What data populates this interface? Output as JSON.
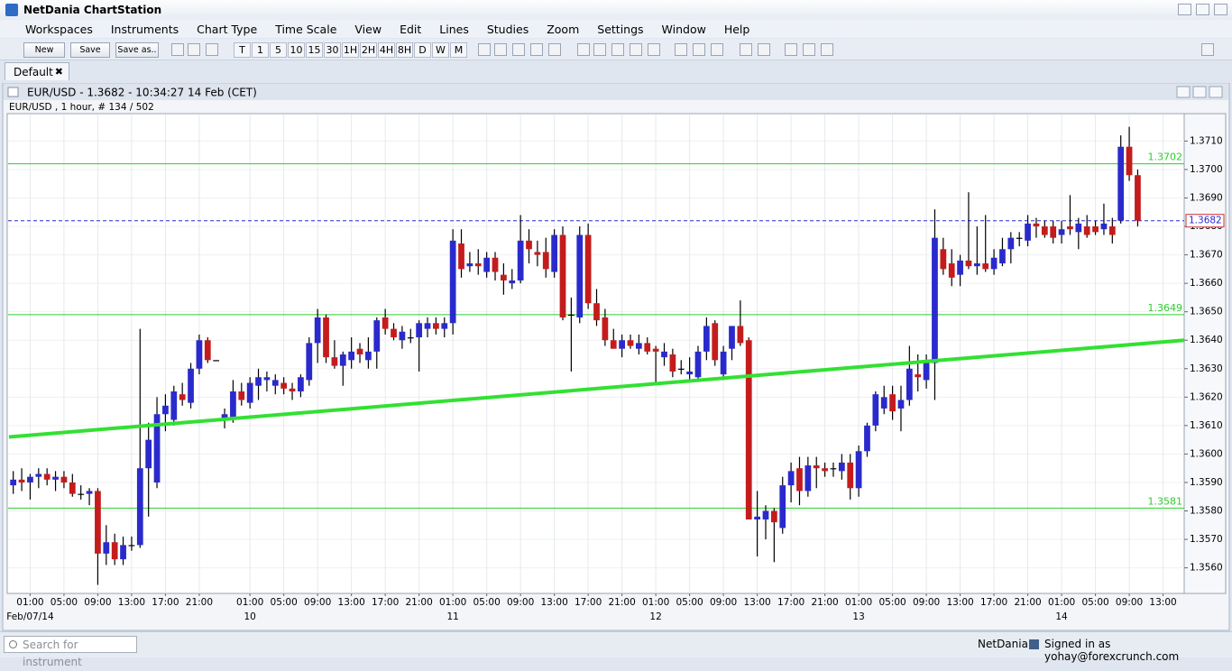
{
  "app": {
    "title": "NetDania ChartStation",
    "menu": [
      "Workspaces",
      "Instruments",
      "Chart Type",
      "Time Scale",
      "View",
      "Edit",
      "Lines",
      "Studies",
      "Zoom",
      "Settings",
      "Window",
      "Help"
    ],
    "buttons": [
      "New",
      "Save",
      "Save as.."
    ],
    "timeframes": [
      "T",
      "1",
      "5",
      "10",
      "15",
      "30",
      "1H",
      "2H",
      "4H",
      "8H",
      "D",
      "W",
      "M"
    ],
    "tab": "Default",
    "window_title": "EUR/USD - 1.3682 - 10:34:27  14 Feb (CET)",
    "chart_info": "EUR/USD , 1 hour, # 134 / 502",
    "search_placeholder": "Search for instrument",
    "status_brand": "NetDania",
    "status_user": "Signed in as yohay@forexcrunch.com"
  },
  "chart_data": {
    "type": "candlestick",
    "up_color": "#2a2acc",
    "down_color": "#c41c1c",
    "level_color": "#2ecc2e",
    "trend_color": "#33e033",
    "last_color": "#2a2acc",
    "grid": true,
    "xlim": [
      -0.5,
      138.5
    ],
    "ylim": [
      1.3551,
      1.3719
    ],
    "yticks": [
      {
        "value": 1.356,
        "label": "1.3560"
      },
      {
        "value": 1.357,
        "label": "1.3570"
      },
      {
        "value": 1.358,
        "label": "1.3580"
      },
      {
        "value": 1.359,
        "label": "1.3590"
      },
      {
        "value": 1.36,
        "label": "1.3600"
      },
      {
        "value": 1.361,
        "label": "1.3610"
      },
      {
        "value": 1.362,
        "label": "1.3620"
      },
      {
        "value": 1.363,
        "label": "1.3630"
      },
      {
        "value": 1.364,
        "label": "1.3640"
      },
      {
        "value": 1.365,
        "label": "1.3650"
      },
      {
        "value": 1.366,
        "label": "1.3660"
      },
      {
        "value": 1.367,
        "label": "1.3670"
      },
      {
        "value": 1.368,
        "label": "1.3680"
      },
      {
        "value": 1.369,
        "label": "1.3690"
      },
      {
        "value": 1.37,
        "label": "1.3700"
      },
      {
        "value": 1.371,
        "label": "1.3710"
      }
    ],
    "xticks": [
      {
        "value": 2,
        "label": "01:00"
      },
      {
        "value": 6,
        "label": "05:00"
      },
      {
        "value": 10,
        "label": "09:00"
      },
      {
        "value": 14,
        "label": "13:00"
      },
      {
        "value": 18,
        "label": "17:00"
      },
      {
        "value": 22,
        "label": "21:00"
      },
      {
        "value": 28,
        "label": "01:00"
      },
      {
        "value": 32,
        "label": "05:00"
      },
      {
        "value": 36,
        "label": "09:00"
      },
      {
        "value": 40,
        "label": "13:00"
      },
      {
        "value": 44,
        "label": "17:00"
      },
      {
        "value": 48,
        "label": "21:00"
      },
      {
        "value": 52,
        "label": "01:00"
      },
      {
        "value": 56,
        "label": "05:00"
      },
      {
        "value": 60,
        "label": "09:00"
      },
      {
        "value": 64,
        "label": "13:00"
      },
      {
        "value": 68,
        "label": "17:00"
      },
      {
        "value": 72,
        "label": "21:00"
      },
      {
        "value": 76,
        "label": "01:00"
      },
      {
        "value": 80,
        "label": "05:00"
      },
      {
        "value": 84,
        "label": "09:00"
      },
      {
        "value": 88,
        "label": "13:00"
      },
      {
        "value": 92,
        "label": "17:00"
      },
      {
        "value": 96,
        "label": "21:00"
      },
      {
        "value": 100,
        "label": "01:00"
      },
      {
        "value": 104,
        "label": "05:00"
      },
      {
        "value": 108,
        "label": "09:00"
      },
      {
        "value": 112,
        "label": "13:00"
      },
      {
        "value": 116,
        "label": "17:00"
      },
      {
        "value": 120,
        "label": "21:00"
      },
      {
        "value": 124,
        "label": "01:00"
      },
      {
        "value": 128,
        "label": "05:00"
      },
      {
        "value": 132,
        "label": "09:00"
      },
      {
        "value": 136,
        "label": "13:00"
      }
    ],
    "xdates": [
      {
        "value": 2,
        "label": "Feb/07/14"
      },
      {
        "value": 28,
        "label": "10"
      },
      {
        "value": 52,
        "label": "11"
      },
      {
        "value": 76,
        "label": "12"
      },
      {
        "value": 100,
        "label": "13"
      },
      {
        "value": 124,
        "label": "14"
      }
    ],
    "open": [
      1.3589,
      1.3591,
      1.359,
      1.3592,
      1.3593,
      1.3591,
      1.3592,
      1.359,
      1.3586,
      1.3586,
      1.3587,
      1.3565,
      1.3569,
      1.3563,
      1.3568,
      1.3568,
      1.3595,
      1.359,
      1.3614,
      1.3612,
      1.3621,
      1.3618,
      1.363,
      1.364,
      1.3633,
      1.3612,
      1.3613,
      1.3622,
      1.3618,
      1.3624,
      1.3626,
      1.3624,
      1.3625,
      1.3623,
      1.3622,
      1.3626,
      1.3639,
      1.3648,
      1.3634,
      1.3631,
      1.3633,
      1.3637,
      1.3633,
      1.3636,
      1.3648,
      1.3644,
      1.364,
      1.3641,
      1.3641,
      1.3644,
      1.3646,
      1.3644,
      1.3646,
      1.3674,
      1.3666,
      1.3667,
      1.3664,
      1.3669,
      1.3663,
      1.366,
      1.3661,
      1.3675,
      1.3671,
      1.3671,
      1.3664,
      1.3677,
      1.3649,
      1.3648,
      1.3677,
      1.3653,
      1.3648,
      1.364,
      1.3637,
      1.364,
      1.3637,
      1.3639,
      1.3637,
      1.3634,
      1.3635,
      1.363,
      1.3628,
      1.3627,
      1.3636,
      1.3646,
      1.3628,
      1.3637,
      1.3645,
      1.364,
      1.3577,
      1.3577,
      1.358,
      1.3574,
      1.3589,
      1.3595,
      1.3587,
      1.3596,
      1.3595,
      1.3595,
      1.3594,
      1.3597,
      1.3588,
      1.3601,
      1.361,
      1.3616,
      1.3621,
      1.3616,
      1.3619,
      1.3628,
      1.3626,
      1.3632,
      1.3672,
      1.3667,
      1.3663,
      1.3668,
      1.3666,
      1.3667,
      1.3665,
      1.3667,
      1.3672,
      1.3676,
      1.3675,
      1.3681,
      1.368,
      1.368,
      1.3677,
      1.368,
      1.3678,
      1.368,
      1.368,
      1.3679,
      1.368,
      1.3682,
      1.3708,
      1.3698
    ],
    "high": [
      1.3594,
      1.3595,
      1.3593,
      1.3595,
      1.3595,
      1.3594,
      1.3594,
      1.3593,
      1.3589,
      1.3588,
      1.3588,
      1.3575,
      1.3572,
      1.3571,
      1.3571,
      1.3644,
      1.3611,
      1.362,
      1.3621,
      1.3624,
      1.3625,
      1.3632,
      1.3642,
      1.3641,
      1.3633,
      1.3616,
      1.3626,
      1.3625,
      1.3627,
      1.363,
      1.3629,
      1.3628,
      1.3627,
      1.3625,
      1.3628,
      1.3641,
      1.3651,
      1.3649,
      1.364,
      1.3636,
      1.3641,
      1.3639,
      1.3641,
      1.3648,
      1.3651,
      1.3646,
      1.3645,
      1.3644,
      1.3647,
      1.3648,
      1.3648,
      1.3648,
      1.3679,
      1.3679,
      1.3671,
      1.3672,
      1.3671,
      1.3671,
      1.3667,
      1.3665,
      1.3684,
      1.3679,
      1.3675,
      1.3676,
      1.3679,
      1.368,
      1.3655,
      1.368,
      1.3681,
      1.3658,
      1.3651,
      1.3644,
      1.3642,
      1.3642,
      1.3642,
      1.3641,
      1.3638,
      1.3639,
      1.3637,
      1.3633,
      1.3634,
      1.3638,
      1.3648,
      1.3647,
      1.3638,
      1.3645,
      1.3654,
      1.3641,
      1.3587,
      1.3582,
      1.3581,
      1.3592,
      1.3597,
      1.3599,
      1.3599,
      1.3599,
      1.3597,
      1.3597,
      1.36,
      1.36,
      1.3603,
      1.3611,
      1.3622,
      1.3624,
      1.3624,
      1.3624,
      1.3638,
      1.3635,
      1.3635,
      1.3686,
      1.3676,
      1.3672,
      1.367,
      1.3692,
      1.368,
      1.3684,
      1.3672,
      1.3676,
      1.3678,
      1.3678,
      1.3684,
      1.3683,
      1.3682,
      1.3682,
      1.3682,
      1.3691,
      1.3683,
      1.3684,
      1.3682,
      1.3688,
      1.3683,
      1.3712,
      1.3715,
      1.37
    ],
    "low": [
      1.3586,
      1.3587,
      1.3584,
      1.3588,
      1.3589,
      1.3587,
      1.3588,
      1.3585,
      1.3584,
      1.3582,
      1.3554,
      1.3561,
      1.3561,
      1.3561,
      1.3566,
      1.3567,
      1.3578,
      1.3588,
      1.3608,
      1.361,
      1.3617,
      1.3616,
      1.3628,
      1.3632,
      1.3633,
      1.3609,
      1.3611,
      1.3617,
      1.3616,
      1.3619,
      1.3622,
      1.3621,
      1.3621,
      1.3619,
      1.362,
      1.3624,
      1.3632,
      1.3632,
      1.363,
      1.3624,
      1.363,
      1.3632,
      1.363,
      1.363,
      1.3642,
      1.364,
      1.3637,
      1.3639,
      1.3629,
      1.3641,
      1.3642,
      1.3641,
      1.3642,
      1.3662,
      1.3664,
      1.3663,
      1.3662,
      1.3661,
      1.3656,
      1.3658,
      1.366,
      1.3667,
      1.3666,
      1.3662,
      1.3662,
      1.3647,
      1.3629,
      1.3646,
      1.3651,
      1.3645,
      1.3638,
      1.3637,
      1.3634,
      1.3637,
      1.3635,
      1.3635,
      1.3625,
      1.3631,
      1.3627,
      1.3628,
      1.3626,
      1.3626,
      1.3633,
      1.3631,
      1.3626,
      1.3633,
      1.3638,
      1.3577,
      1.3564,
      1.357,
      1.3562,
      1.3572,
      1.3583,
      1.3582,
      1.3585,
      1.3588,
      1.3592,
      1.3592,
      1.3591,
      1.3584,
      1.3585,
      1.3599,
      1.3608,
      1.3614,
      1.3612,
      1.3608,
      1.3617,
      1.3622,
      1.3623,
      1.3619,
      1.3663,
      1.3659,
      1.3659,
      1.3665,
      1.3663,
      1.3664,
      1.3663,
      1.3666,
      1.3667,
      1.3673,
      1.3673,
      1.3676,
      1.3676,
      1.3674,
      1.3674,
      1.3677,
      1.3672,
      1.3676,
      1.3677,
      1.3677,
      1.3674,
      1.3681,
      1.3696,
      1.368
    ],
    "close": [
      1.3591,
      1.359,
      1.3592,
      1.3593,
      1.3591,
      1.3592,
      1.359,
      1.3586,
      1.3586,
      1.3587,
      1.3565,
      1.3569,
      1.3563,
      1.3568,
      1.3568,
      1.3595,
      1.3605,
      1.3614,
      1.3617,
      1.3622,
      1.3619,
      1.363,
      1.364,
      1.3633,
      1.3633,
      1.3614,
      1.3622,
      1.3619,
      1.3625,
      1.3627,
      1.3627,
      1.3626,
      1.3623,
      1.3622,
      1.3627,
      1.3639,
      1.3648,
      1.3634,
      1.3631,
      1.3635,
      1.3636,
      1.3635,
      1.3636,
      1.3647,
      1.3644,
      1.3641,
      1.3643,
      1.3641,
      1.3646,
      1.3646,
      1.3644,
      1.3646,
      1.3675,
      1.3665,
      1.3667,
      1.3666,
      1.3669,
      1.3664,
      1.3661,
      1.3661,
      1.3675,
      1.3672,
      1.367,
      1.3665,
      1.3677,
      1.3648,
      1.3649,
      1.3677,
      1.3653,
      1.3647,
      1.364,
      1.3637,
      1.364,
      1.3638,
      1.3639,
      1.3636,
      1.3636,
      1.3636,
      1.3629,
      1.363,
      1.3629,
      1.3636,
      1.3645,
      1.3633,
      1.3636,
      1.3645,
      1.3639,
      1.3577,
      1.3578,
      1.358,
      1.3576,
      1.3589,
      1.3594,
      1.3587,
      1.3596,
      1.3595,
      1.3594,
      1.3595,
      1.3597,
      1.3588,
      1.3601,
      1.361,
      1.3621,
      1.362,
      1.3615,
      1.3619,
      1.363,
      1.3627,
      1.3632,
      1.3676,
      1.3665,
      1.3662,
      1.3668,
      1.3666,
      1.3667,
      1.3665,
      1.3669,
      1.3672,
      1.3676,
      1.3676,
      1.3681,
      1.368,
      1.3677,
      1.3676,
      1.3679,
      1.3679,
      1.3681,
      1.3677,
      1.3678,
      1.3681,
      1.3677,
      1.3708,
      1.3698,
      1.3682
    ],
    "levels": [
      1.3702,
      1.3649,
      1.3581
    ],
    "last_price": 1.3682,
    "trendline": {
      "x": [
        -0.5,
        138.5
      ],
      "y": [
        1.3606,
        1.364
      ]
    }
  }
}
